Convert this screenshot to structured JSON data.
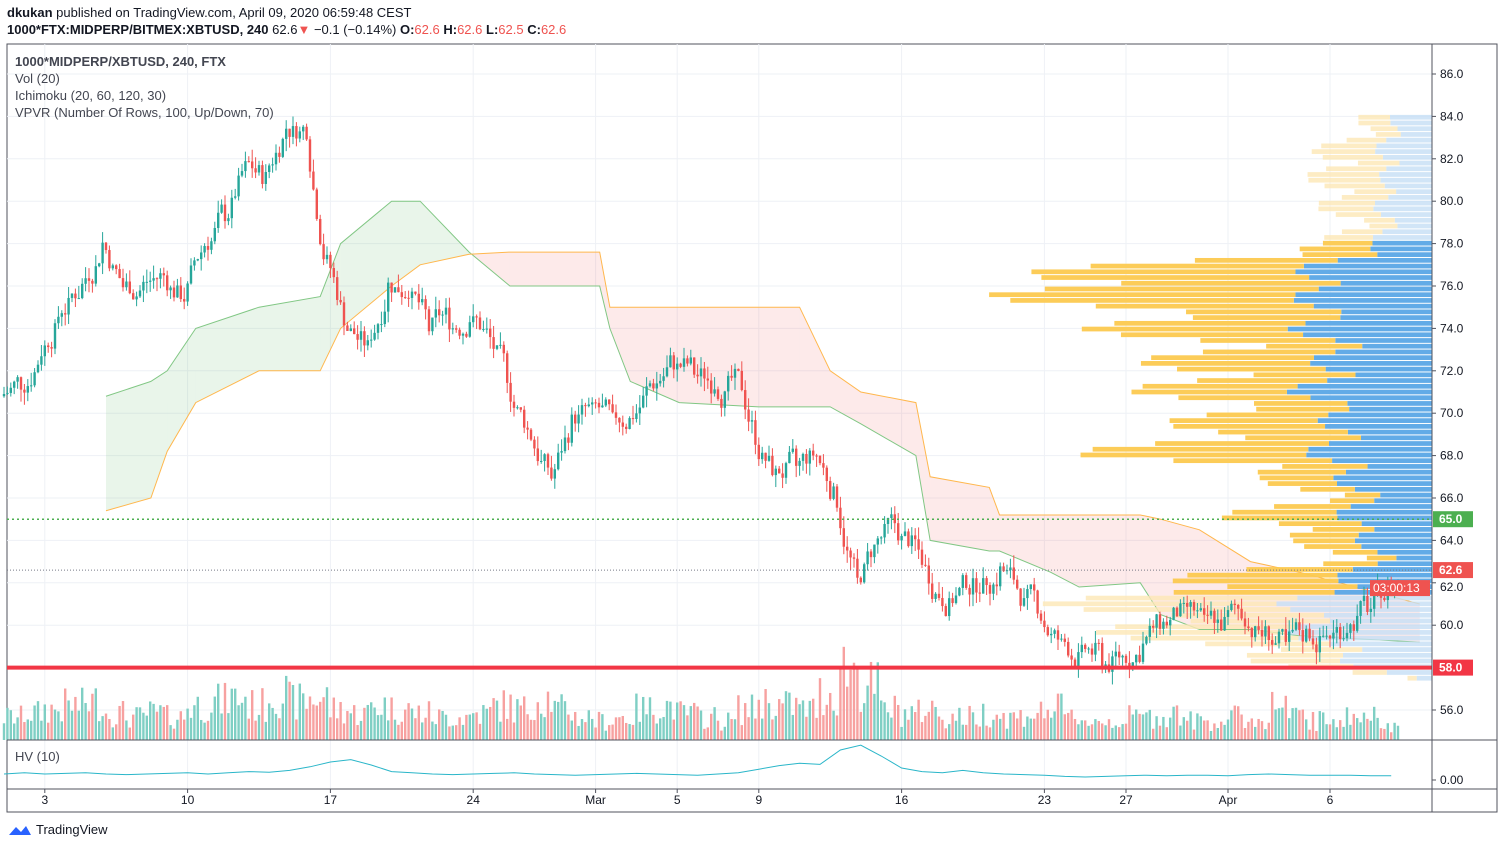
{
  "header": {
    "author": "dkukan",
    "published": "published on TradingView.com, April 09, 2020 06:59:48 CEST",
    "symbol": "1000*FTX:MIDPERP/BITMEX:XBTUSD, 240",
    "last": "62.6",
    "change": "−0.1 (−0.14%)",
    "o_label": "O:",
    "o": "62.6",
    "h_label": "H:",
    "h": "62.6",
    "l_label": "L:",
    "l": "62.5",
    "c_label": "C:",
    "c": "62.6"
  },
  "legend": [
    "1000*MIDPERP/XBTUSD, 240, FTX",
    "Vol (20)",
    "Ichimoku (20, 60, 120, 30)",
    "VPVR (Number Of Rows, 100, Up/Down, 70)"
  ],
  "hv_label": "HV (10)",
  "footer": "TradingView",
  "colors": {
    "up": "#26a69a",
    "down": "#ef5350",
    "vol_up": "#7fcfc4",
    "vol_down": "#f7a1a0",
    "vp_up": "#5aa7e6",
    "vp_down": "#fcc94f",
    "hv": "#2ab6c9"
  },
  "chart_data": {
    "type": "candlestick",
    "title": "1000*MIDPERP/XBTUSD, 240, FTX",
    "ylim": [
      54.7,
      87.5
    ],
    "y_ticks": [
      "56.0",
      "58.0",
      "60.0",
      "62.0",
      "64.0",
      "66.0",
      "68.0",
      "70.0",
      "72.0",
      "74.0",
      "76.0",
      "78.0",
      "80.0",
      "82.0",
      "84.0",
      "86.0"
    ],
    "x_ticks": [
      {
        "day": 2,
        "label": "3"
      },
      {
        "day": 9,
        "label": "10"
      },
      {
        "day": 16,
        "label": "17"
      },
      {
        "day": 23,
        "label": "24"
      },
      {
        "day": 29,
        "label": "Mar"
      },
      {
        "day": 33,
        "label": "5"
      },
      {
        "day": 37,
        "label": "9"
      },
      {
        "day": 44,
        "label": "16"
      },
      {
        "day": 51,
        "label": "23"
      },
      {
        "day": 55,
        "label": "27"
      },
      {
        "day": 60,
        "label": "Apr"
      },
      {
        "day": 65,
        "label": "6"
      }
    ],
    "daily_close": [
      71.5,
      73,
      75,
      76,
      78,
      76,
      76,
      76.5,
      75.5,
      78,
      79.5,
      81.5,
      81,
      83.5,
      83.5,
      77,
      74,
      73,
      76,
      76,
      74,
      74.5,
      74.5,
      73.5,
      71,
      69,
      67,
      69.5,
      70,
      69.5,
      70,
      71.5,
      72.5,
      72,
      71.5,
      71.5,
      69,
      67,
      67.5,
      68,
      66,
      62,
      64,
      64.5,
      63.5,
      61.5,
      61.5,
      62,
      62.5,
      61.5,
      60.5,
      59,
      58.5,
      58.5,
      58.5,
      59,
      60,
      60.5,
      60,
      60,
      60.5,
      59.5,
      59,
      59.5,
      59.5,
      60,
      61,
      61.5,
      62.6
    ],
    "daily_volume": [
      30,
      35,
      40,
      45,
      50,
      35,
      30,
      35,
      30,
      45,
      50,
      55,
      45,
      60,
      50,
      55,
      40,
      35,
      45,
      40,
      35,
      30,
      30,
      35,
      45,
      40,
      55,
      40,
      30,
      25,
      30,
      40,
      45,
      35,
      30,
      25,
      40,
      50,
      45,
      40,
      60,
      95,
      70,
      40,
      35,
      40,
      30,
      30,
      35,
      30,
      35,
      40,
      30,
      25,
      25,
      30,
      30,
      35,
      25,
      25,
      30,
      25,
      45,
      30,
      25,
      30,
      30,
      30,
      20
    ],
    "hv": [
      10,
      12,
      10,
      11,
      12,
      10,
      9,
      10,
      11,
      12,
      10,
      12,
      14,
      13,
      16,
      22,
      30,
      34,
      25,
      14,
      12,
      10,
      9,
      10,
      11,
      12,
      10,
      9,
      8,
      9,
      10,
      11,
      10,
      9,
      8,
      10,
      12,
      18,
      24,
      28,
      26,
      50,
      58,
      40,
      20,
      14,
      12,
      16,
      12,
      10,
      9,
      8,
      6,
      5,
      6,
      7,
      8,
      7,
      8,
      8,
      7,
      9,
      10,
      9,
      8,
      8,
      8,
      7,
      7
    ],
    "ichimoku_cloud": [
      [
        5,
        70.8,
        65.4
      ],
      [
        7.2,
        71.5,
        66
      ],
      [
        8,
        72,
        68.2
      ],
      [
        9.4,
        74,
        70.5
      ],
      [
        12.5,
        75,
        72
      ],
      [
        15.5,
        75.5,
        72
      ],
      [
        16.5,
        78,
        74
      ],
      [
        19,
        80,
        76
      ],
      [
        20.4,
        80,
        77
      ],
      [
        22.8,
        77.6,
        77.5
      ],
      [
        24.8,
        76,
        77.6
      ],
      [
        29.2,
        76,
        77.6
      ],
      [
        29.7,
        74,
        75
      ],
      [
        30.7,
        71.5,
        75
      ],
      [
        33.1,
        70.5,
        75
      ],
      [
        37,
        70.3,
        75
      ],
      [
        39,
        70.3,
        75
      ],
      [
        40.5,
        70.3,
        72
      ],
      [
        42,
        69.5,
        71
      ],
      [
        44.7,
        68,
        70.5
      ],
      [
        45.4,
        64,
        67
      ],
      [
        48.3,
        63.5,
        66.5
      ],
      [
        48.8,
        63.5,
        65.2
      ],
      [
        51.3,
        62.5,
        65.2
      ],
      [
        52.7,
        61.8,
        65.2
      ],
      [
        55.7,
        62,
        65.2
      ],
      [
        56.7,
        60.5,
        65
      ],
      [
        58.6,
        59.8,
        64.5
      ],
      [
        61.1,
        59.8,
        63
      ],
      [
        63.5,
        59.5,
        62.5
      ],
      [
        69.4,
        59.2,
        61
      ]
    ],
    "vpvr": [
      [
        84,
        8,
        6
      ],
      [
        83,
        10,
        8
      ],
      [
        82,
        12,
        15
      ],
      [
        81,
        10,
        14
      ],
      [
        80,
        12,
        12
      ],
      [
        79,
        10,
        8
      ],
      [
        78,
        12,
        10
      ],
      [
        77,
        25,
        40
      ],
      [
        76,
        30,
        75
      ],
      [
        75,
        25,
        45
      ],
      [
        74,
        28,
        40
      ],
      [
        73,
        22,
        30
      ],
      [
        72,
        25,
        35
      ],
      [
        71,
        28,
        30
      ],
      [
        70,
        22,
        25
      ],
      [
        69,
        22,
        35
      ],
      [
        68,
        25,
        45
      ],
      [
        67,
        20,
        15
      ],
      [
        66,
        15,
        10
      ],
      [
        65,
        20,
        25
      ],
      [
        64,
        15,
        12
      ],
      [
        63,
        12,
        10
      ],
      [
        62,
        22,
        40
      ],
      [
        61,
        30,
        45
      ],
      [
        60,
        30,
        40
      ],
      [
        59,
        25,
        30
      ],
      [
        58,
        15,
        12
      ],
      [
        57.5,
        5,
        3
      ]
    ],
    "value_area": [
      61.3,
      78.2
    ],
    "levels": [
      {
        "price": 58.0,
        "label": "58.0",
        "color": "#f23645"
      },
      {
        "price": 65.0,
        "label": "65.0",
        "color": "#4caf50"
      }
    ],
    "last_price": {
      "price": 62.6,
      "label": "62.6",
      "countdown": "03:00:13"
    },
    "hv_tick": "0.00"
  }
}
